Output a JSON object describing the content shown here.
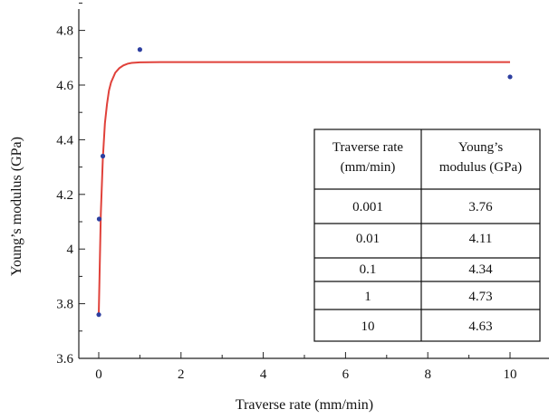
{
  "chart_data": {
    "type": "scatter",
    "title": "",
    "xlabel": "Traverse rate (mm/min)",
    "ylabel": "Young’s modulus (GPa)",
    "xlim": [
      -0.5,
      10.5
    ],
    "ylim": [
      3.6,
      4.9
    ],
    "x_ticks": [
      0,
      2,
      4,
      6,
      8,
      10
    ],
    "y_ticks": [
      3.6,
      3.8,
      4,
      4.2,
      4.4,
      4.6,
      4.8
    ],
    "x_tick_labels": [
      "0",
      "2",
      "4",
      "6",
      "8",
      "10"
    ],
    "y_tick_labels": [
      "3.6",
      "3.8",
      "4",
      "4.2",
      "4.4",
      "4.6",
      "4.8"
    ],
    "grid": false,
    "series": [
      {
        "kind": "points",
        "color": "#2d3fa0",
        "x": [
          0.001,
          0.01,
          0.1,
          1,
          10
        ],
        "y": [
          3.76,
          4.11,
          4.34,
          4.73,
          4.63
        ]
      },
      {
        "kind": "fit-line",
        "color": "#e0413a",
        "x": [
          0,
          0.05,
          0.1,
          0.15,
          0.2,
          0.25,
          0.3,
          0.4,
          0.5,
          0.6,
          0.7,
          0.8,
          1.0,
          1.5,
          3,
          6,
          10
        ],
        "y": [
          3.76,
          4.13,
          4.33,
          4.46,
          4.53,
          4.58,
          4.61,
          4.645,
          4.662,
          4.672,
          4.678,
          4.681,
          4.683,
          4.684,
          4.684,
          4.684,
          4.684
        ]
      }
    ],
    "table": {
      "headers": [
        [
          "Traverse rate",
          "(mm/min)"
        ],
        [
          "Young’s",
          "modulus (GPa)"
        ]
      ],
      "rows": [
        [
          "0.001",
          "3.76"
        ],
        [
          "0.01",
          "4.11"
        ],
        [
          "0.1",
          "4.34"
        ],
        [
          "1",
          "4.73"
        ],
        [
          "10",
          "4.63"
        ]
      ]
    }
  }
}
